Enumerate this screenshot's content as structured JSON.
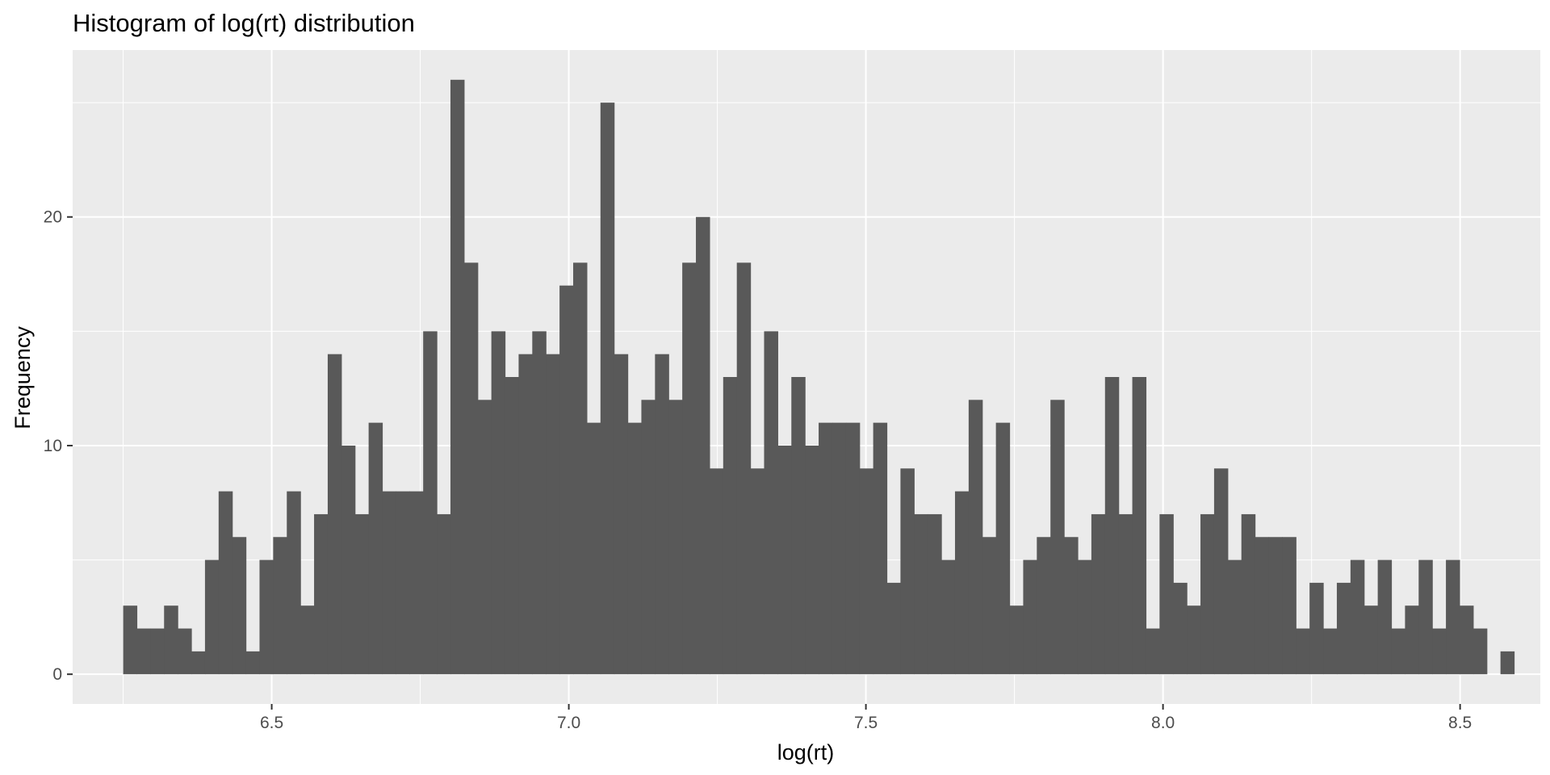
{
  "chart_data": {
    "type": "bar",
    "title": "Histogram of log(rt) distribution",
    "xlabel": "log(rt)",
    "ylabel": "Frequency",
    "xlim": [
      6.165,
      8.635
    ],
    "ylim": [
      -1.3,
      27.3
    ],
    "x_ticks": [
      6.5,
      7.0,
      7.5,
      8.0,
      8.5
    ],
    "x_tick_labels": [
      "6.5",
      "7.0",
      "7.5",
      "8.0",
      "8.5"
    ],
    "x_minor_ticks": [
      6.25,
      6.75,
      7.25,
      7.75,
      8.25
    ],
    "y_ticks": [
      0,
      10,
      20
    ],
    "y_tick_labels": [
      "0",
      "10",
      "20"
    ],
    "y_minor_ticks": [
      5,
      15,
      25
    ],
    "grid": true,
    "bar_color": "#595959",
    "panel_background": "#ebebeb",
    "grid_color": "#ffffff",
    "bin_width": 0.02295,
    "bin_start": 6.25,
    "bin_counts": [
      3,
      2,
      2,
      3,
      2,
      1,
      5,
      8,
      6,
      1,
      5,
      6,
      8,
      3,
      7,
      14,
      10,
      7,
      11,
      8,
      8,
      8,
      15,
      7,
      26,
      18,
      12,
      15,
      13,
      14,
      15,
      14,
      17,
      18,
      11,
      25,
      14,
      11,
      12,
      14,
      12,
      18,
      20,
      9,
      13,
      18,
      9,
      15,
      10,
      13,
      10,
      11,
      11,
      11,
      9,
      11,
      4,
      9,
      7,
      7,
      5,
      8,
      12,
      6,
      11,
      3,
      5,
      6,
      12,
      6,
      5,
      7,
      13,
      7,
      13,
      2,
      7,
      4,
      3,
      7,
      9,
      5,
      7,
      6,
      6,
      6,
      2,
      4,
      2,
      4,
      5,
      3,
      5,
      2,
      3,
      5,
      2,
      5,
      3,
      2,
      0,
      1
    ]
  }
}
